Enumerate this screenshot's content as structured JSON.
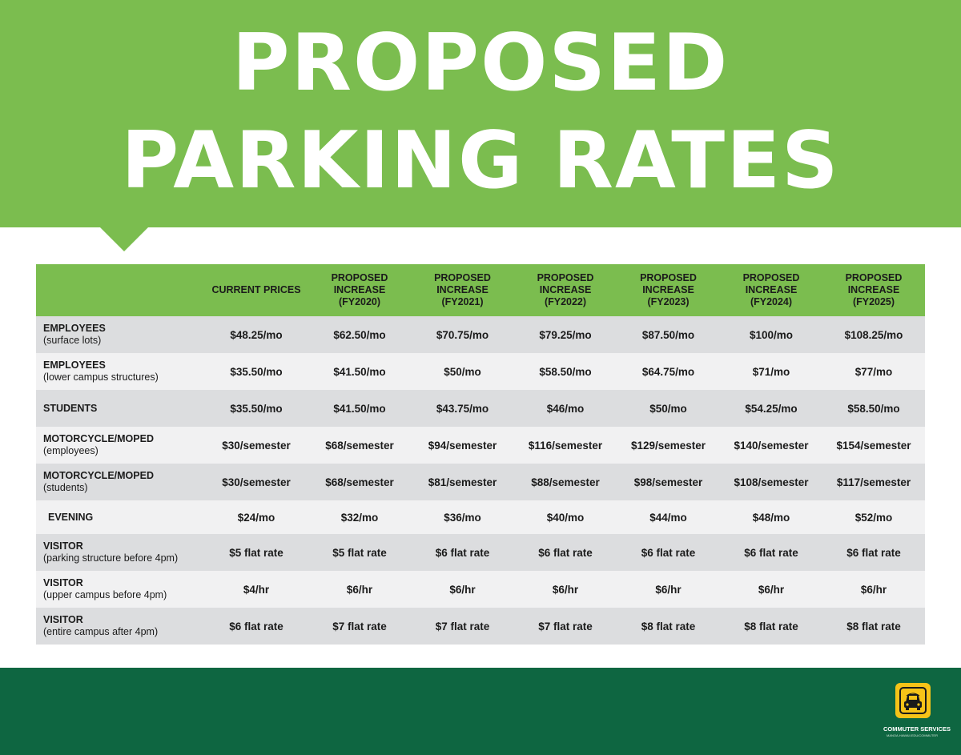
{
  "title_line1": "PROPOSED",
  "title_line2": "PARKING RATES",
  "header": {
    "blank": "",
    "columns": [
      {
        "l1": "CURRENT PRICES",
        "l2": "",
        "l3": ""
      },
      {
        "l1": "PROPOSED",
        "l2": "INCREASE",
        "l3": "(FY2020)"
      },
      {
        "l1": "PROPOSED",
        "l2": "INCREASE",
        "l3": "(FY2021)"
      },
      {
        "l1": "PROPOSED",
        "l2": "INCREASE",
        "l3": "(FY2022)"
      },
      {
        "l1": "PROPOSED",
        "l2": "INCREASE",
        "l3": "(FY2023)"
      },
      {
        "l1": "PROPOSED",
        "l2": "INCREASE",
        "l3": "(FY2024)"
      },
      {
        "l1": "PROPOSED",
        "l2": "INCREASE",
        "l3": "(FY2025)"
      }
    ]
  },
  "rows": [
    {
      "label": "EMPLOYEES",
      "sub": "(surface lots)",
      "values": [
        "$48.25/mo",
        "$62.50/mo",
        "$70.75/mo",
        "$79.25/mo",
        "$87.50/mo",
        "$100/mo",
        "$108.25/mo"
      ]
    },
    {
      "label": "EMPLOYEES",
      "sub": "(lower campus structures)",
      "values": [
        "$35.50/mo",
        "$41.50/mo",
        "$50/mo",
        "$58.50/mo",
        "$64.75/mo",
        "$71/mo",
        "$77/mo"
      ]
    },
    {
      "label": "STUDENTS",
      "sub": "",
      "values": [
        "$35.50/mo",
        "$41.50/mo",
        "$43.75/mo",
        "$46/mo",
        "$50/mo",
        "$54.25/mo",
        "$58.50/mo"
      ]
    },
    {
      "label": "MOTORCYCLE/MOPED",
      "sub": "(employees)",
      "values": [
        "$30/semester",
        "$68/semester",
        "$94/semester",
        "$116/semester",
        "$129/semester",
        "$140/semester",
        "$154/semester"
      ]
    },
    {
      "label": "MOTORCYCLE/MOPED",
      "sub": "(students)",
      "values": [
        "$30/semester",
        "$68/semester",
        "$81/semester",
        "$88/semester",
        "$98/semester",
        "$108/semester",
        "$117/semester"
      ]
    },
    {
      "label": "EVENING",
      "sub": "",
      "values": [
        "$24/mo",
        "$32/mo",
        "$36/mo",
        "$40/mo",
        "$44/mo",
        "$48/mo",
        "$52/mo"
      ]
    },
    {
      "label": "VISITOR",
      "sub": "(parking structure before 4pm)",
      "values": [
        "$5 flat rate",
        "$5 flat rate",
        "$6 flat rate",
        "$6 flat rate",
        "$6 flat rate",
        "$6 flat rate",
        "$6 flat rate"
      ]
    },
    {
      "label": "VISITOR",
      "sub": "(upper campus before 4pm)",
      "values": [
        "$4/hr",
        "$6/hr",
        "$6/hr",
        "$6/hr",
        "$6/hr",
        "$6/hr",
        "$6/hr"
      ]
    },
    {
      "label": "VISITOR",
      "sub": "(entire campus after 4pm)",
      "values": [
        "$6 flat rate",
        "$7 flat rate",
        "$7 flat rate",
        "$7 flat rate",
        "$8 flat rate",
        "$8 flat rate",
        "$8 flat rate"
      ]
    }
  ],
  "footer": {
    "logo_text": "COMMUTER SERVICES",
    "logo_sub": "MANOA.HAWAII.EDU/COMMUTER",
    "logo_icon": "car-icon"
  },
  "colors": {
    "banner_green": "#7bbd4f",
    "footer_green": "#0e6641",
    "logo_yellow": "#f6c318",
    "row_dark": "#dcdddf",
    "row_light": "#f1f1f2"
  }
}
